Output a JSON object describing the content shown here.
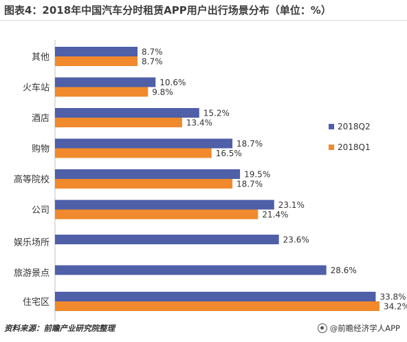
{
  "title": "图表4：2018年中国汽车分时租赁APP用户出行场景分布（单位：%）",
  "source": "资料来源：前瞻产业研究院整理",
  "brand": "@前瞻经济学人APP",
  "chart_data": {
    "type": "bar",
    "orientation": "horizontal",
    "categories": [
      "其他",
      "火车站",
      "酒店",
      "购物",
      "高等院校",
      "公司",
      "娱乐场所",
      "旅游景点",
      "住宅区"
    ],
    "series": [
      {
        "name": "2018Q2",
        "color": "#4f5fa8",
        "values": [
          8.7,
          10.6,
          15.2,
          18.7,
          19.5,
          23.1,
          23.6,
          28.6,
          33.8
        ]
      },
      {
        "name": "2018Q1",
        "color": "#f08a2c",
        "values": [
          8.7,
          9.8,
          13.4,
          16.5,
          18.7,
          21.4,
          null,
          null,
          34.2
        ]
      }
    ],
    "value_suffix": "%",
    "legend_position": "right",
    "grid": false
  }
}
